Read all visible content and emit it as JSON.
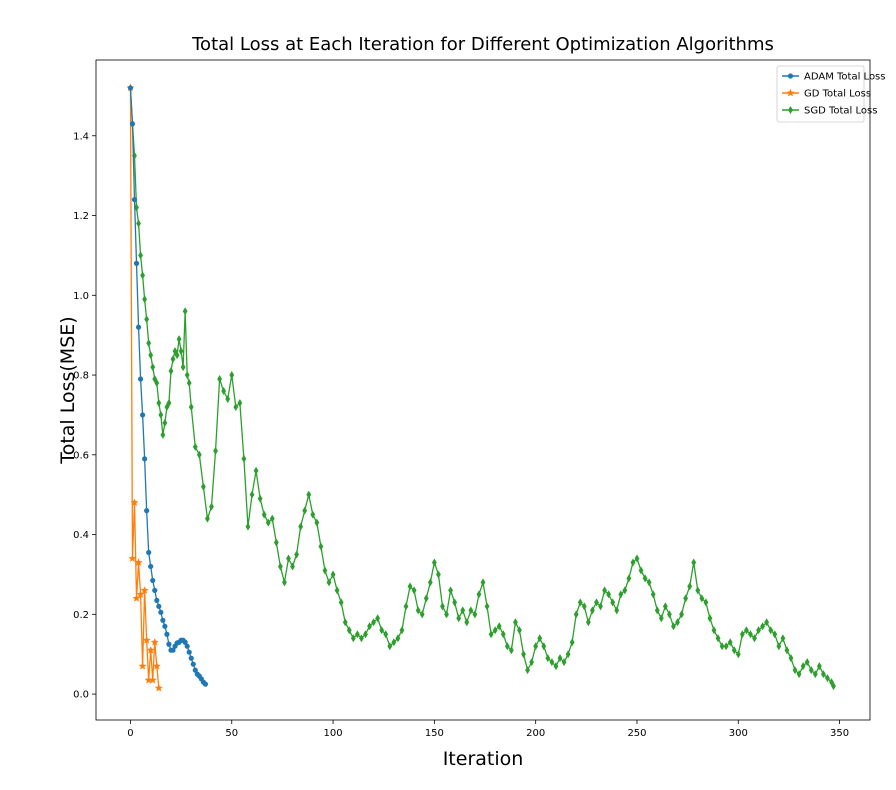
{
  "chart_data": {
    "type": "line",
    "title": "Total Loss at Each Iteration for Different Optimization Algorithms",
    "xlabel": "Iteration",
    "ylabel": "Total Loss(MSE)",
    "xlim": [
      -17,
      365
    ],
    "ylim": [
      -0.065,
      1.59
    ],
    "x_ticks": [
      0,
      50,
      100,
      150,
      200,
      250,
      300,
      350
    ],
    "y_ticks": [
      0.0,
      0.2,
      0.4,
      0.6,
      0.8,
      1.0,
      1.2,
      1.4
    ],
    "grid": false,
    "legend_position": "top-right",
    "series": [
      {
        "name": "ADAM Total Loss",
        "color": "#1f77b4",
        "marker": "circle",
        "x": [
          0,
          1,
          2,
          3,
          4,
          5,
          6,
          7,
          8,
          9,
          10,
          11,
          12,
          13,
          14,
          15,
          16,
          17,
          18,
          19,
          20,
          21,
          22,
          23,
          24,
          25,
          26,
          27,
          28,
          29,
          30,
          31,
          32,
          33,
          34,
          35,
          36,
          37
        ],
        "values": [
          1.52,
          1.43,
          1.24,
          1.08,
          0.92,
          0.79,
          0.7,
          0.59,
          0.46,
          0.355,
          0.32,
          0.285,
          0.26,
          0.235,
          0.22,
          0.205,
          0.185,
          0.17,
          0.15,
          0.125,
          0.11,
          0.11,
          0.12,
          0.128,
          0.13,
          0.135,
          0.135,
          0.13,
          0.12,
          0.105,
          0.09,
          0.075,
          0.06,
          0.05,
          0.045,
          0.038,
          0.03,
          0.025
        ]
      },
      {
        "name": "GD Total Loss",
        "color": "#ff7f0e",
        "marker": "star",
        "x": [
          0,
          1,
          2,
          3,
          4,
          5,
          6,
          7,
          8,
          9,
          10,
          11,
          12,
          13,
          14
        ],
        "values": [
          1.52,
          0.34,
          0.48,
          0.24,
          0.33,
          0.25,
          0.07,
          0.26,
          0.135,
          0.035,
          0.11,
          0.035,
          0.13,
          0.07,
          0.015
        ]
      },
      {
        "name": "SGD Total Loss",
        "color": "#2ca02c",
        "marker": "diamond",
        "x": [
          0,
          1,
          2,
          3,
          4,
          5,
          6,
          7,
          8,
          9,
          10,
          11,
          12,
          13,
          14,
          15,
          16,
          17,
          18,
          19,
          20,
          21,
          22,
          23,
          24,
          25,
          26,
          27,
          28,
          29,
          30,
          32,
          34,
          36,
          38,
          40,
          42,
          44,
          46,
          48,
          50,
          52,
          54,
          56,
          58,
          60,
          62,
          64,
          66,
          68,
          70,
          72,
          74,
          76,
          78,
          80,
          82,
          84,
          86,
          88,
          90,
          92,
          94,
          96,
          98,
          100,
          102,
          104,
          106,
          108,
          110,
          112,
          114,
          116,
          118,
          120,
          122,
          124,
          126,
          128,
          130,
          132,
          134,
          136,
          138,
          140,
          142,
          144,
          146,
          148,
          150,
          152,
          154,
          156,
          158,
          160,
          162,
          164,
          166,
          168,
          170,
          172,
          174,
          176,
          178,
          180,
          182,
          184,
          186,
          188,
          190,
          192,
          194,
          196,
          198,
          200,
          202,
          204,
          206,
          208,
          210,
          212,
          214,
          216,
          218,
          220,
          222,
          224,
          226,
          228,
          230,
          232,
          234,
          236,
          238,
          240,
          242,
          244,
          246,
          248,
          250,
          252,
          254,
          256,
          258,
          260,
          262,
          264,
          266,
          268,
          270,
          272,
          274,
          276,
          278,
          280,
          282,
          284,
          286,
          288,
          290,
          292,
          294,
          296,
          298,
          300,
          302,
          304,
          306,
          308,
          310,
          312,
          314,
          316,
          318,
          320,
          322,
          324,
          326,
          328,
          330,
          332,
          334,
          336,
          338,
          340,
          342,
          344,
          346,
          347
        ],
        "values": [
          1.52,
          1.43,
          1.35,
          1.22,
          1.18,
          1.1,
          1.05,
          0.99,
          0.94,
          0.88,
          0.85,
          0.82,
          0.79,
          0.78,
          0.73,
          0.7,
          0.65,
          0.68,
          0.72,
          0.73,
          0.81,
          0.84,
          0.86,
          0.85,
          0.89,
          0.86,
          0.82,
          0.96,
          0.8,
          0.78,
          0.72,
          0.62,
          0.6,
          0.52,
          0.44,
          0.47,
          0.61,
          0.79,
          0.76,
          0.74,
          0.8,
          0.72,
          0.73,
          0.59,
          0.42,
          0.5,
          0.56,
          0.49,
          0.45,
          0.43,
          0.44,
          0.38,
          0.32,
          0.28,
          0.34,
          0.32,
          0.35,
          0.42,
          0.46,
          0.5,
          0.45,
          0.43,
          0.37,
          0.31,
          0.28,
          0.3,
          0.26,
          0.23,
          0.18,
          0.16,
          0.14,
          0.15,
          0.14,
          0.15,
          0.17,
          0.18,
          0.19,
          0.16,
          0.15,
          0.12,
          0.13,
          0.14,
          0.16,
          0.22,
          0.27,
          0.26,
          0.21,
          0.2,
          0.24,
          0.28,
          0.33,
          0.3,
          0.22,
          0.2,
          0.26,
          0.23,
          0.19,
          0.21,
          0.18,
          0.21,
          0.2,
          0.25,
          0.28,
          0.22,
          0.15,
          0.16,
          0.17,
          0.15,
          0.12,
          0.11,
          0.18,
          0.16,
          0.1,
          0.06,
          0.08,
          0.12,
          0.14,
          0.12,
          0.09,
          0.08,
          0.07,
          0.09,
          0.08,
          0.1,
          0.13,
          0.2,
          0.23,
          0.22,
          0.18,
          0.21,
          0.23,
          0.22,
          0.26,
          0.25,
          0.23,
          0.21,
          0.25,
          0.26,
          0.29,
          0.33,
          0.34,
          0.31,
          0.29,
          0.28,
          0.25,
          0.21,
          0.19,
          0.22,
          0.2,
          0.17,
          0.18,
          0.2,
          0.24,
          0.27,
          0.33,
          0.26,
          0.24,
          0.23,
          0.19,
          0.16,
          0.14,
          0.12,
          0.12,
          0.13,
          0.11,
          0.1,
          0.15,
          0.16,
          0.15,
          0.14,
          0.16,
          0.17,
          0.18,
          0.16,
          0.15,
          0.12,
          0.14,
          0.11,
          0.09,
          0.06,
          0.05,
          0.07,
          0.08,
          0.06,
          0.05,
          0.07,
          0.05,
          0.04,
          0.03,
          0.02
        ]
      }
    ]
  }
}
